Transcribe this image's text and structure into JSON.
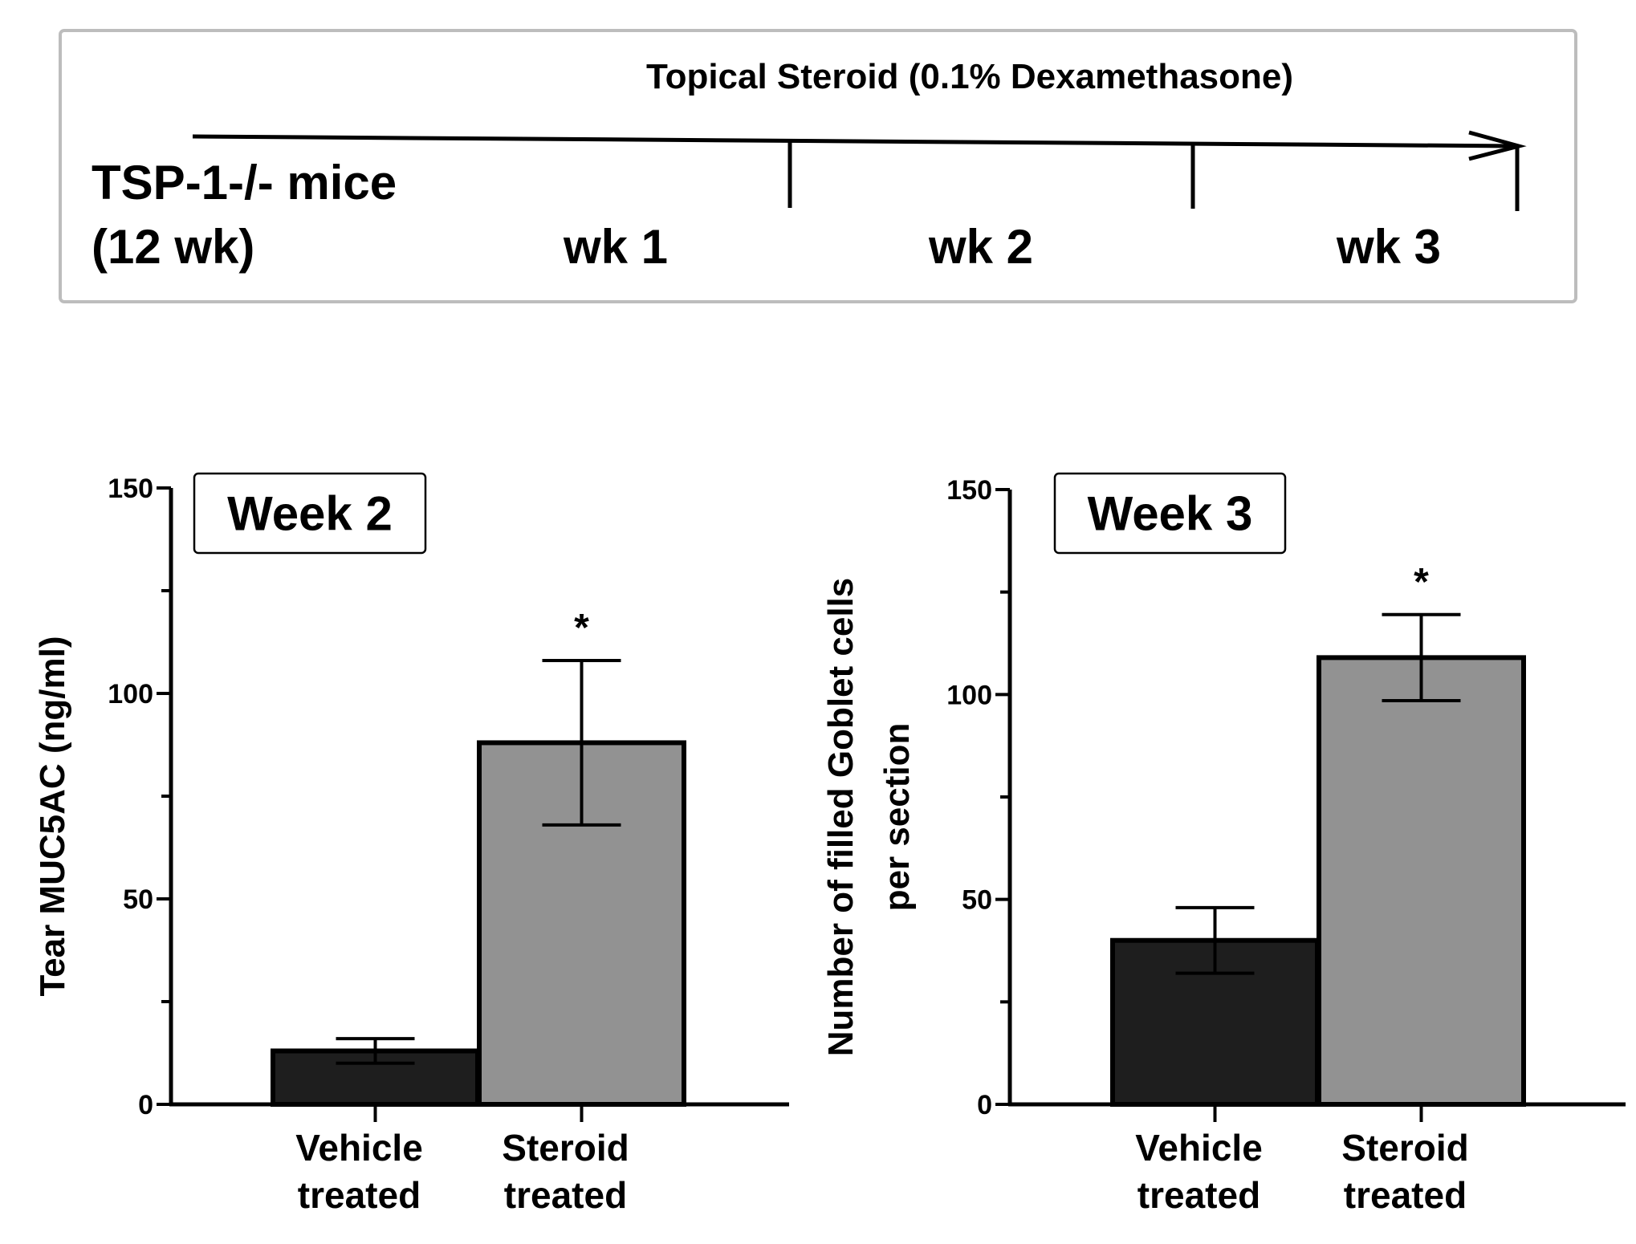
{
  "timeline": {
    "title": "Topical Steroid (0.1% Dexamethasone)",
    "subject_line1": "TSP-1-/- mice",
    "subject_line2": "(12 wk)",
    "weeks": [
      "wk 1",
      "wk 2",
      "wk 3"
    ]
  },
  "chart_data": [
    {
      "type": "bar",
      "label_box": "Week 2",
      "ylabel": "Tear MUC5AC (ng/ml)",
      "ylim": [
        0,
        150
      ],
      "yticks": [
        0,
        50,
        100,
        150
      ],
      "categories": [
        [
          "Vehicle",
          "treated"
        ],
        [
          "Steroid",
          "treated"
        ]
      ],
      "values": [
        13,
        88
      ],
      "errors": [
        3,
        20
      ],
      "significance": [
        "",
        "*"
      ],
      "colors": [
        "#1e1e1e",
        "#929292"
      ]
    },
    {
      "type": "bar",
      "label_box": "Week 3",
      "ylabel": [
        "Number of filled Goblet cells",
        "per section"
      ],
      "ylim": [
        0,
        150
      ],
      "yticks": [
        0,
        50,
        100,
        150
      ],
      "categories": [
        [
          "Vehicle",
          "treated"
        ],
        [
          "Steroid",
          "treated"
        ]
      ],
      "values": [
        40,
        109
      ],
      "errors": [
        8,
        10.5
      ],
      "significance": [
        "",
        "*"
      ],
      "colors": [
        "#1e1e1e",
        "#929292"
      ]
    }
  ]
}
